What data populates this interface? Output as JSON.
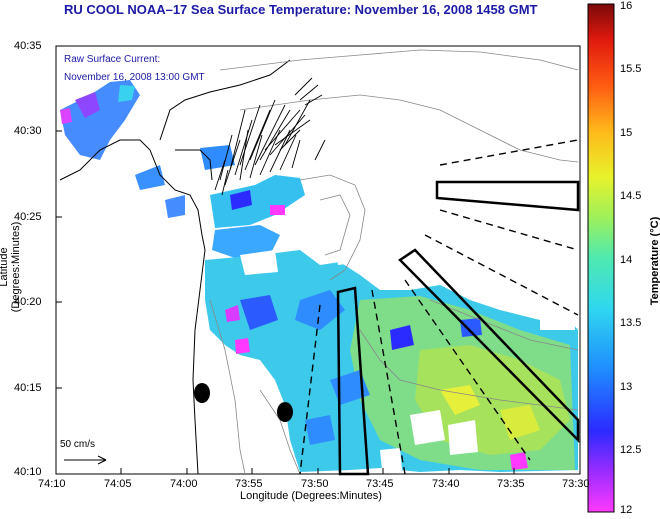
{
  "title": "RU COOL  NOAA–17  Sea Surface Temperature:  November 16, 2008 1458 GMT",
  "xlabel": "Longitude (Degrees:Minutes)",
  "ylabel": "Latitude (Degrees:Minutes)",
  "note_line1": "Raw Surface Current:",
  "note_line2": "November 16, 2008 13:00 GMT",
  "scale_label": "50 cm/s",
  "colorbar": {
    "title": "Temperature (°C)",
    "min": 12,
    "max": 16,
    "ticks": [
      "16",
      "15.5",
      "15",
      "14.5",
      "14",
      "13.5",
      "13",
      "12.5",
      "12"
    ]
  },
  "axes": {
    "x_ticks": [
      "74:10",
      "74:05",
      "74:00",
      "73:55",
      "73:50",
      "73:45",
      "73:40",
      "73:35",
      "73:30"
    ],
    "y_ticks": [
      "40:35",
      "40:30",
      "40:25",
      "40:20",
      "40:15",
      "40:10"
    ]
  },
  "colors": {
    "title_blue": "#1a1aa6",
    "cool_blue": "#2f6fff",
    "mid_cyan": "#35d0e8",
    "warm_green": "#8ae06a",
    "warm_yellow": "#f2f23a",
    "magenta": "#ff30ff"
  }
}
